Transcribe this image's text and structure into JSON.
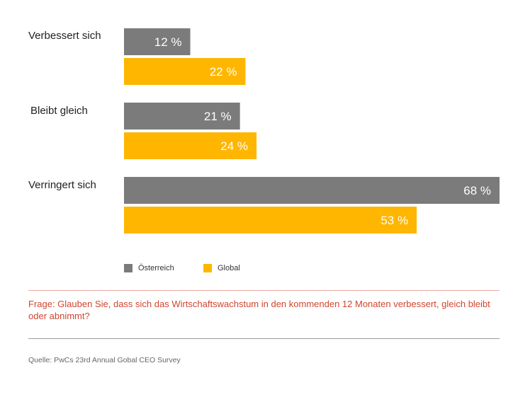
{
  "chart_data": {
    "type": "bar",
    "orientation": "horizontal",
    "categories": [
      "Verbessert sich",
      "Bleibt gleich",
      "Verringert sich"
    ],
    "series": [
      {
        "name": "Österreich",
        "color": "#7b7b7b",
        "values": [
          12,
          21,
          68
        ],
        "labels": [
          "12 %",
          "21 %",
          "68 %"
        ]
      },
      {
        "name": "Global",
        "color": "#ffb600",
        "values": [
          22,
          24,
          53
        ],
        "labels": [
          "22 %",
          "24 %",
          "53 %"
        ]
      }
    ],
    "xlim": [
      0,
      68
    ],
    "grid": false,
    "legend_position": "bottom-left"
  },
  "question": "Frage: Glauben Sie, dass sich das Wirtschaftswachstum in den kommenden 12 Monaten verbessert, gleich bleibt oder abnimmt?",
  "source": "Quelle: PwCs 23rd Annual Gobal CEO Survey",
  "colors": {
    "question": "#d0452f",
    "rule_top": "#e8a6a0",
    "rule_bottom": "#9a9a9a"
  }
}
